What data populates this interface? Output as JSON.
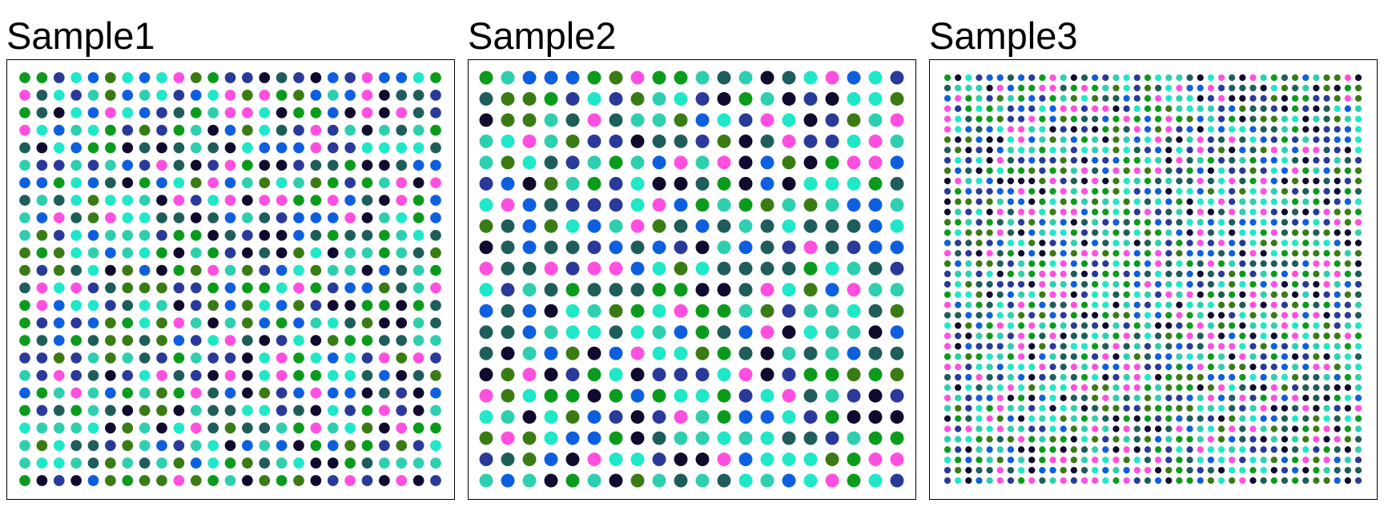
{
  "chart_data": [
    {
      "type": "scatter",
      "title": "Sample1",
      "rows": 24,
      "cols": 25,
      "pattern_seed": 11,
      "colors": [
        "#1ee8c7",
        "#ff4fe0",
        "#0b9b1c",
        "#2a3a9a",
        "#0f0a2e",
        "#1f5d5a",
        "#0e5fe0",
        "#3a7b14",
        "#2ecfae"
      ]
    },
    {
      "type": "scatter",
      "title": "Sample2",
      "rows": 20,
      "cols": 20,
      "pattern_seed": 29,
      "colors": [
        "#1ee8c7",
        "#ff4fe0",
        "#0b9b1c",
        "#2a3a9a",
        "#0f0a2e",
        "#1f5d5a",
        "#0e5fe0",
        "#3a7b14",
        "#2ecfae"
      ]
    },
    {
      "type": "scatter",
      "title": "Sample3",
      "rows": 40,
      "cols": 40,
      "pattern_seed": 47,
      "colors": [
        "#1ee8c7",
        "#ff4fe0",
        "#0b9b1c",
        "#2a3a9a",
        "#0f0a2e",
        "#1f5d5a",
        "#0e5fe0",
        "#3a7b14",
        "#2ecfae"
      ]
    }
  ]
}
